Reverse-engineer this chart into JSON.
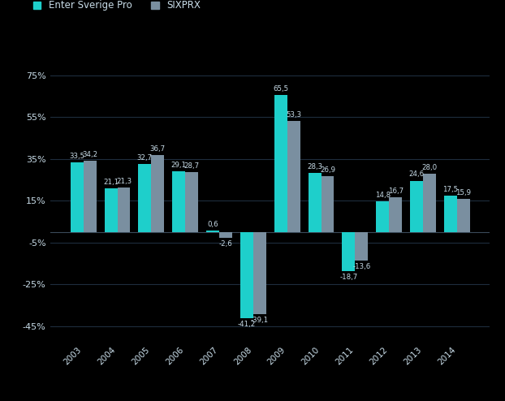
{
  "years": [
    "2003",
    "2004",
    "2005",
    "2006",
    "2007",
    "2008",
    "2009",
    "2010",
    "2011",
    "2012",
    "2013",
    "2014"
  ],
  "enter_sverige_pro": [
    33.5,
    21.1,
    32.7,
    29.1,
    0.6,
    -41.2,
    65.5,
    28.3,
    -18.7,
    14.8,
    24.6,
    17.5
  ],
  "sixprx": [
    34.2,
    21.3,
    36.7,
    28.7,
    -2.6,
    -39.1,
    53.3,
    26.9,
    -13.6,
    16.7,
    28.0,
    15.9
  ],
  "enter_color": "#1ecfcb",
  "sixprx_color": "#7a8fa0",
  "background_color": "#000000",
  "grid_color": "#1e2d3d",
  "text_color": "#c8dce8",
  "legend_enter": "Enter Sverige Pro",
  "legend_sixprx": "SIXPRX",
  "ylim": [
    -52,
    88
  ],
  "yticks": [
    -45,
    -25,
    -5,
    15,
    35,
    55,
    75
  ],
  "ytick_labels": [
    "-45%",
    "-25%",
    "-5%",
    "15%",
    "35%",
    "55%",
    "75%"
  ],
  "bar_width": 0.38
}
